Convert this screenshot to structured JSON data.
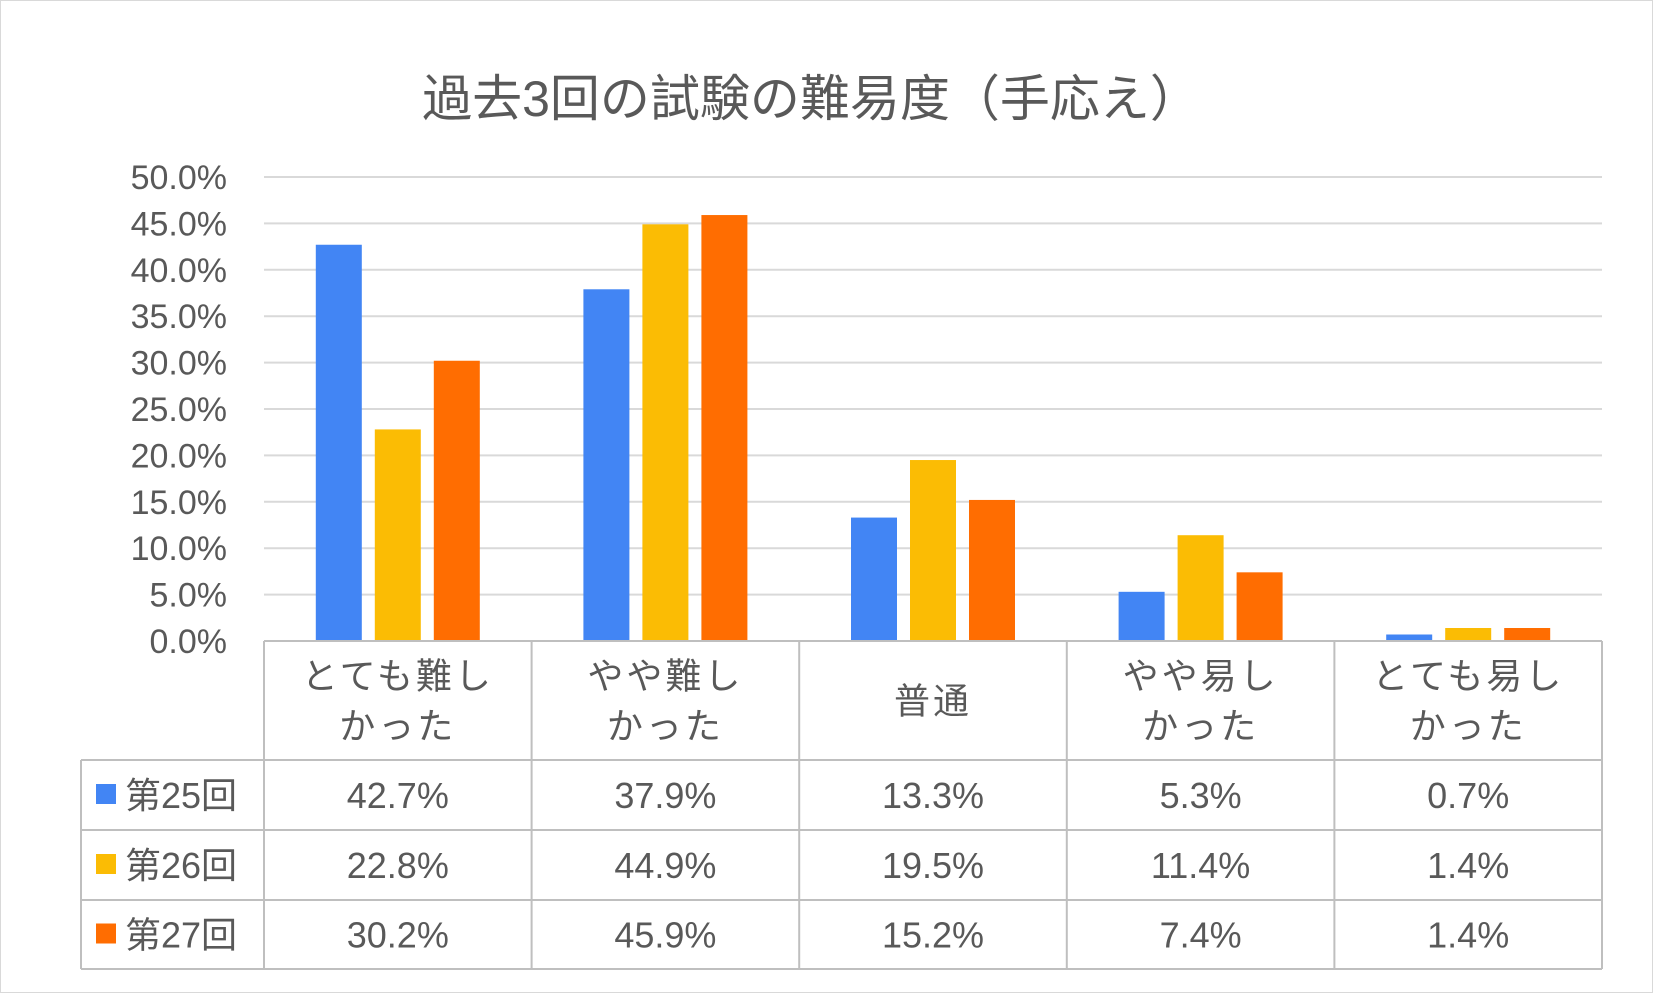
{
  "chart_data": {
    "type": "bar",
    "title": "過去3回の試験の難易度（手応え）",
    "xlabel": "",
    "ylabel": "",
    "ylim": [
      0,
      50
    ],
    "y_ticks": [
      0,
      5,
      10,
      15,
      20,
      25,
      30,
      35,
      40,
      45,
      50
    ],
    "y_tick_labels": [
      "0.0%",
      "5.0%",
      "10.0%",
      "15.0%",
      "20.0%",
      "25.0%",
      "30.0%",
      "35.0%",
      "40.0%",
      "45.0%",
      "50.0%"
    ],
    "grid": true,
    "legend": "data-table",
    "categories": [
      [
        "とても難し",
        "かった"
      ],
      [
        "やや難し",
        "かった"
      ],
      [
        "普通"
      ],
      [
        "やや易し",
        "かった"
      ],
      [
        "とても易し",
        "かった"
      ]
    ],
    "series": [
      {
        "name": "第25回",
        "color": "#4285f4",
        "values": [
          42.7,
          37.9,
          13.3,
          5.3,
          0.7
        ],
        "labels": [
          "42.7%",
          "37.9%",
          "13.3%",
          "5.3%",
          "0.7%"
        ]
      },
      {
        "name": "第26回",
        "color": "#fbbc04",
        "values": [
          22.8,
          44.9,
          19.5,
          11.4,
          1.4
        ],
        "labels": [
          "22.8%",
          "44.9%",
          "19.5%",
          "11.4%",
          "1.4%"
        ]
      },
      {
        "name": "第27回",
        "color": "#ff6d01",
        "values": [
          30.2,
          45.9,
          15.2,
          7.4,
          1.4
        ],
        "labels": [
          "30.2%",
          "45.9%",
          "15.2%",
          "7.4%",
          "1.4%"
        ]
      }
    ]
  }
}
